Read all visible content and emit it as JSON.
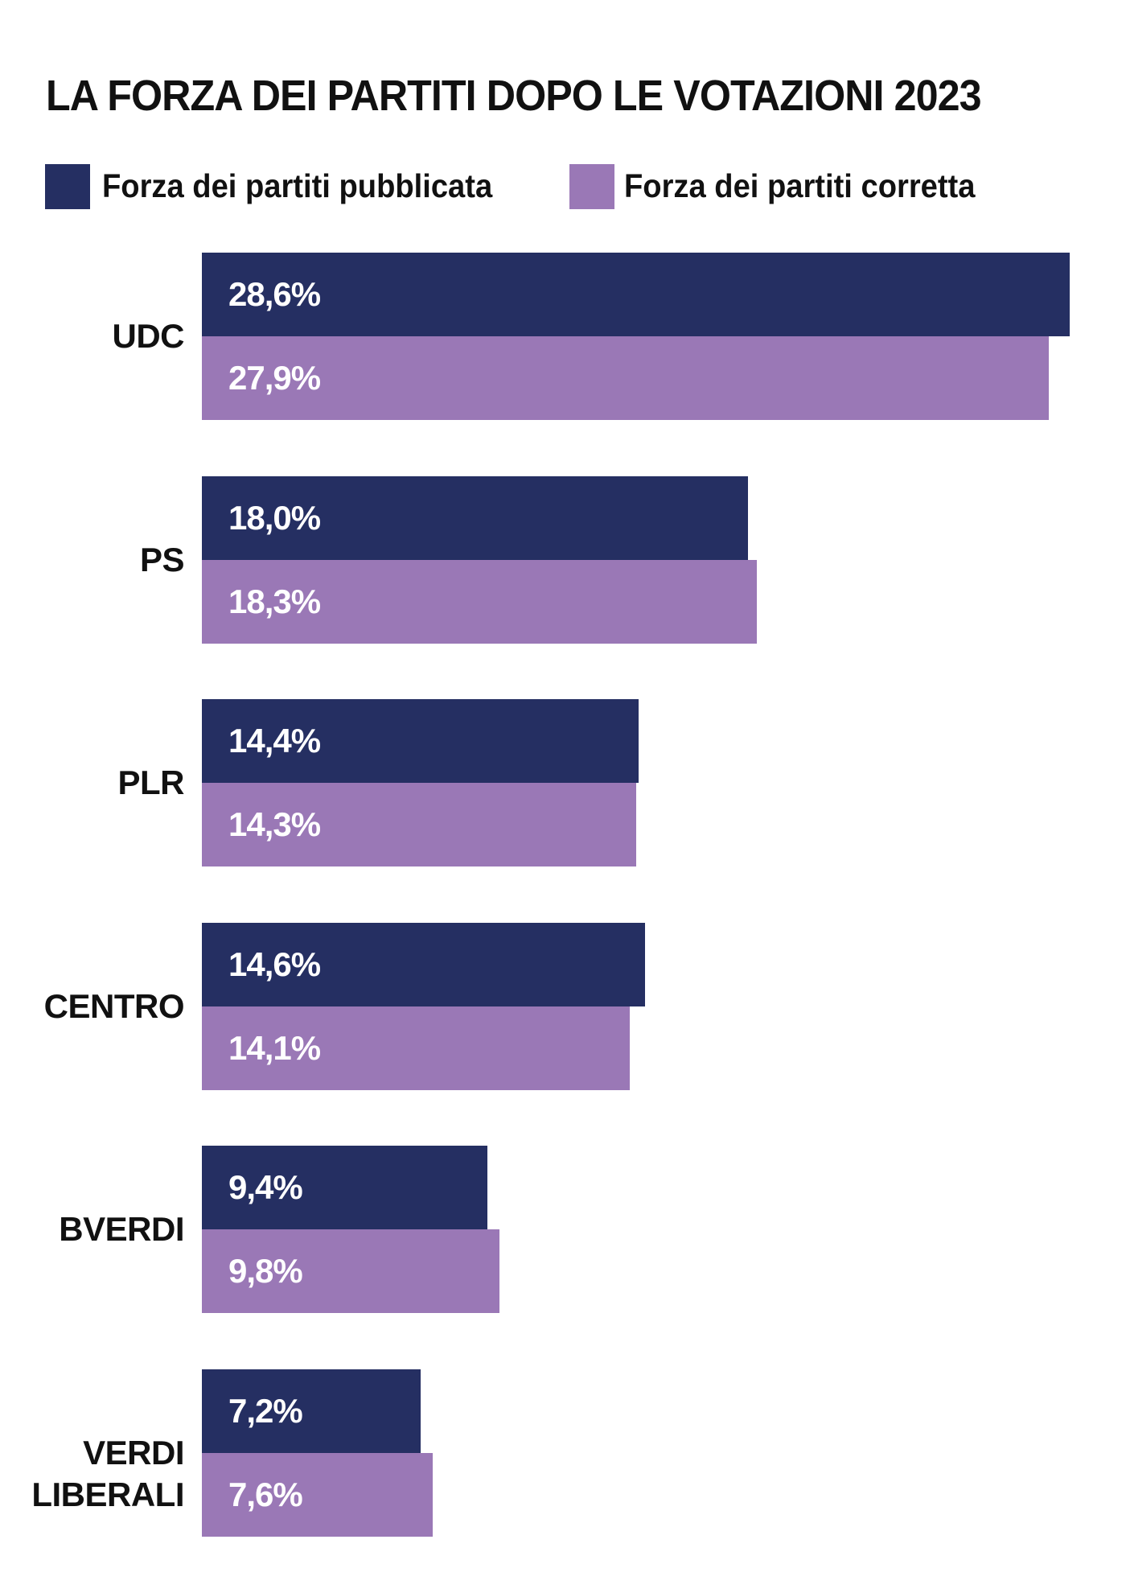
{
  "chart_data": {
    "type": "bar",
    "orientation": "horizontal",
    "title": "LA FORZA DEI PARTITI DOPO LE VOTAZIONI 2023",
    "categories": [
      "UDC",
      "PS",
      "PLR",
      "CENTRO",
      "BVERDI",
      "VERDI LIBERALI"
    ],
    "category_lines": [
      [
        "UDC"
      ],
      [
        "PS"
      ],
      [
        "PLR"
      ],
      [
        "CENTRO"
      ],
      [
        "BVERDI"
      ],
      [
        "VERDI",
        "LIBERALI"
      ]
    ],
    "series": [
      {
        "name": "Forza dei partiti pubblicata",
        "color": "#252f62",
        "values": [
          28.6,
          18.0,
          14.4,
          14.6,
          9.4,
          7.2
        ],
        "labels": [
          "28,6%",
          "18,0%",
          "14,4%",
          "14,6%",
          "9,4%",
          "7,2%"
        ]
      },
      {
        "name": "Forza dei partiti corretta",
        "color": "#9a78b6",
        "values": [
          27.9,
          18.3,
          14.3,
          14.1,
          9.8,
          7.6
        ],
        "labels": [
          "27,9%",
          "18,3%",
          "14,3%",
          "14,1%",
          "9,8%",
          "7,6%"
        ]
      }
    ],
    "xlabel": "",
    "ylabel": "",
    "xlim": [
      0,
      28.6
    ],
    "grid": false,
    "legend": "top-left"
  }
}
